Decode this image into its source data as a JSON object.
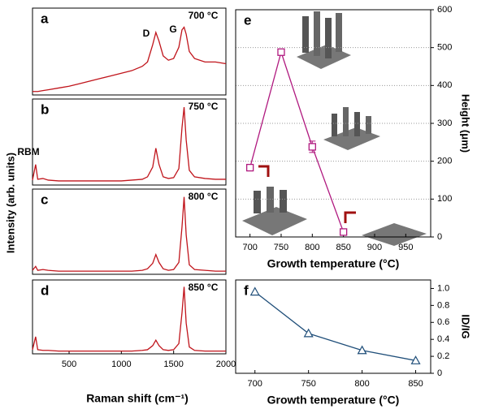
{
  "chart_data": [
    {
      "type": "line",
      "panel": "a",
      "title": "700 °C",
      "annotations": [
        "D",
        "G"
      ],
      "color": "#c0141b",
      "ylabel": "Intensity (arb. units)",
      "x": [
        150,
        180,
        200,
        250,
        300,
        400,
        500,
        600,
        700,
        800,
        900,
        1000,
        1100,
        1200,
        1250,
        1300,
        1330,
        1360,
        1400,
        1450,
        1500,
        1550,
        1580,
        1600,
        1620,
        1650,
        1700,
        1800,
        1900,
        2000
      ],
      "values": [
        4,
        4,
        4,
        5,
        6,
        8,
        10,
        13,
        16,
        19,
        22,
        25,
        28,
        33,
        38,
        58,
        72,
        62,
        45,
        40,
        42,
        55,
        75,
        78,
        70,
        50,
        42,
        38,
        38,
        36
      ],
      "xlim": [
        150,
        2000
      ],
      "ylim": [
        0,
        100
      ]
    },
    {
      "type": "line",
      "panel": "b",
      "title": "750 °C",
      "annotations": [
        "RBM"
      ],
      "color": "#c0141b",
      "x": [
        150,
        180,
        200,
        250,
        300,
        400,
        500,
        600,
        700,
        800,
        900,
        1000,
        1100,
        1200,
        1250,
        1300,
        1330,
        1360,
        1400,
        1450,
        1500,
        1550,
        1580,
        1600,
        1620,
        1650,
        1700,
        1800,
        1900,
        2000
      ],
      "values": [
        6,
        25,
        7,
        8,
        6,
        5,
        5,
        5,
        5,
        5,
        5,
        5,
        6,
        7,
        10,
        22,
        45,
        25,
        10,
        8,
        9,
        20,
        70,
        95,
        55,
        18,
        10,
        8,
        7,
        7
      ],
      "xlim": [
        150,
        2000
      ],
      "ylim": [
        0,
        105
      ]
    },
    {
      "type": "line",
      "panel": "c",
      "title": "800 °C",
      "color": "#c0141b",
      "x": [
        150,
        180,
        200,
        250,
        300,
        400,
        500,
        600,
        700,
        800,
        900,
        1000,
        1100,
        1200,
        1250,
        1300,
        1330,
        1360,
        1400,
        1450,
        1500,
        1550,
        1580,
        1600,
        1620,
        1650,
        1700,
        1800,
        1900,
        2000
      ],
      "values": [
        5,
        10,
        5,
        6,
        5,
        4,
        4,
        4,
        4,
        4,
        4,
        4,
        4,
        5,
        7,
        14,
        25,
        15,
        7,
        5,
        6,
        15,
        60,
        98,
        50,
        12,
        6,
        5,
        4,
        4
      ],
      "xlim": [
        150,
        2000
      ],
      "ylim": [
        0,
        108
      ]
    },
    {
      "type": "line",
      "panel": "d",
      "title": "850 °C",
      "color": "#c0141b",
      "xlabel": "Raman shift (cm⁻¹)",
      "x": [
        150,
        180,
        200,
        250,
        300,
        400,
        500,
        600,
        700,
        800,
        900,
        1000,
        1100,
        1200,
        1250,
        1300,
        1330,
        1360,
        1400,
        1450,
        1500,
        1550,
        1580,
        1600,
        1620,
        1650,
        1700,
        1800,
        1900,
        2000
      ],
      "values": [
        6,
        25,
        6,
        5,
        5,
        4,
        4,
        4,
        4,
        4,
        4,
        4,
        4,
        5,
        6,
        12,
        20,
        12,
        6,
        5,
        6,
        15,
        60,
        98,
        45,
        10,
        5,
        4,
        4,
        4
      ],
      "xlim": [
        150,
        2000
      ],
      "ylim": [
        0,
        108
      ],
      "xticks": [
        500,
        1000,
        1500,
        2000
      ]
    },
    {
      "type": "errorline",
      "panel": "e",
      "color": "#b0197f",
      "xlabel": "Growth temperature (°C)",
      "ylabel": "Height (μm)",
      "x": [
        700,
        750,
        800,
        850
      ],
      "values": [
        183,
        488,
        238,
        13
      ],
      "errors": [
        8,
        6,
        15,
        6
      ],
      "xlim": [
        677,
        990
      ],
      "ylim": [
        0,
        600
      ],
      "xticks": [
        700,
        750,
        800,
        850,
        900,
        950
      ],
      "yticks": [
        0,
        100,
        200,
        300,
        400,
        500,
        600
      ],
      "grid": true
    },
    {
      "type": "line",
      "panel": "f",
      "color": "#1f4e79",
      "marker": "triangle",
      "xlabel": "Growth temperature (°C)",
      "ylabel": "ID/IG",
      "x": [
        700,
        750,
        800,
        850
      ],
      "values": [
        0.96,
        0.47,
        0.27,
        0.15
      ],
      "xlim": [
        682,
        864
      ],
      "ylim": [
        0,
        1.1
      ],
      "xticks": [
        700,
        750,
        800,
        850
      ],
      "yticks": [
        0,
        0.2,
        0.4,
        0.6,
        0.8,
        {
          "value": 1,
          "label": "1.0"
        }
      ]
    }
  ]
}
